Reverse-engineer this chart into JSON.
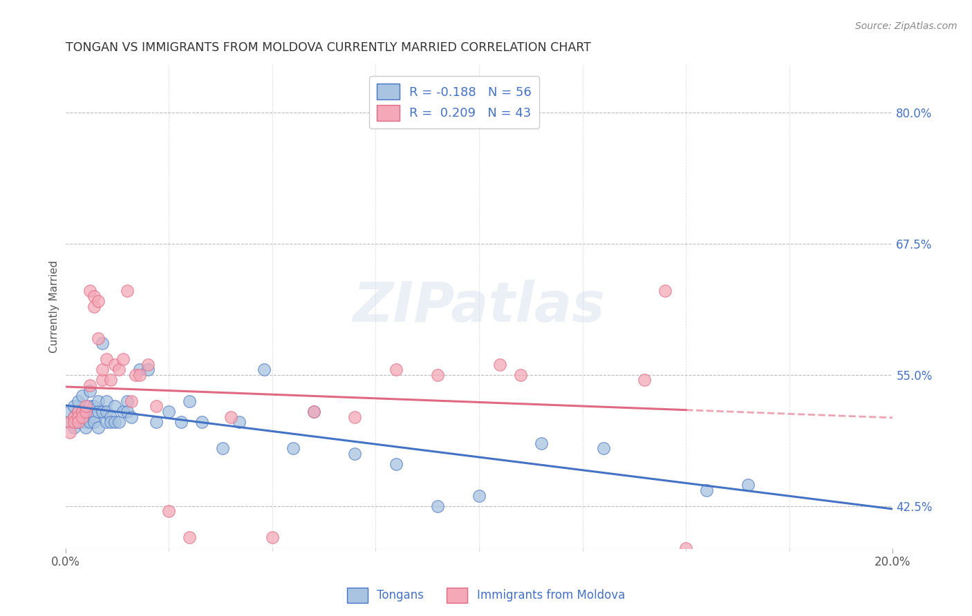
{
  "title": "TONGAN VS IMMIGRANTS FROM MOLDOVA CURRENTLY MARRIED CORRELATION CHART",
  "source": "Source: ZipAtlas.com",
  "ylabel": "Currently Married",
  "ytick_labels": [
    "42.5%",
    "55.0%",
    "67.5%",
    "80.0%"
  ],
  "ytick_values": [
    0.425,
    0.55,
    0.675,
    0.8
  ],
  "xlim": [
    0.0,
    0.2
  ],
  "ylim": [
    0.385,
    0.845
  ],
  "watermark": "ZIPatlas",
  "legend_blue_r": "R = -0.188",
  "legend_blue_n": "N = 56",
  "legend_pink_r": "R =  0.209",
  "legend_pink_n": "N = 43",
  "color_blue": "#a8c4e0",
  "color_pink": "#f4a8b8",
  "line_blue": "#4472c4",
  "line_pink": "#e06880",
  "background": "#ffffff",
  "tongan_x": [
    0.001,
    0.001,
    0.002,
    0.002,
    0.002,
    0.003,
    0.003,
    0.003,
    0.004,
    0.004,
    0.005,
    0.005,
    0.005,
    0.006,
    0.006,
    0.006,
    0.007,
    0.007,
    0.007,
    0.008,
    0.008,
    0.008,
    0.009,
    0.009,
    0.01,
    0.01,
    0.01,
    0.011,
    0.011,
    0.012,
    0.012,
    0.013,
    0.014,
    0.015,
    0.015,
    0.016,
    0.018,
    0.02,
    0.022,
    0.025,
    0.028,
    0.03,
    0.033,
    0.038,
    0.042,
    0.048,
    0.055,
    0.06,
    0.07,
    0.08,
    0.09,
    0.1,
    0.115,
    0.13,
    0.155,
    0.165
  ],
  "tongan_y": [
    0.515,
    0.505,
    0.52,
    0.51,
    0.5,
    0.525,
    0.515,
    0.505,
    0.53,
    0.515,
    0.51,
    0.505,
    0.5,
    0.535,
    0.52,
    0.505,
    0.52,
    0.51,
    0.505,
    0.525,
    0.515,
    0.5,
    0.58,
    0.515,
    0.525,
    0.515,
    0.505,
    0.51,
    0.505,
    0.52,
    0.505,
    0.505,
    0.515,
    0.525,
    0.515,
    0.51,
    0.555,
    0.555,
    0.505,
    0.515,
    0.505,
    0.525,
    0.505,
    0.48,
    0.505,
    0.555,
    0.48,
    0.515,
    0.475,
    0.465,
    0.425,
    0.435,
    0.485,
    0.48,
    0.44,
    0.445
  ],
  "moldova_x": [
    0.001,
    0.001,
    0.002,
    0.002,
    0.003,
    0.003,
    0.003,
    0.004,
    0.004,
    0.005,
    0.005,
    0.006,
    0.006,
    0.007,
    0.007,
    0.008,
    0.008,
    0.009,
    0.009,
    0.01,
    0.011,
    0.012,
    0.013,
    0.014,
    0.015,
    0.016,
    0.017,
    0.018,
    0.02,
    0.022,
    0.025,
    0.03,
    0.04,
    0.05,
    0.06,
    0.07,
    0.08,
    0.09,
    0.105,
    0.11,
    0.14,
    0.145,
    0.15
  ],
  "moldova_y": [
    0.505,
    0.495,
    0.51,
    0.505,
    0.515,
    0.51,
    0.505,
    0.515,
    0.51,
    0.515,
    0.52,
    0.54,
    0.63,
    0.625,
    0.615,
    0.585,
    0.62,
    0.545,
    0.555,
    0.565,
    0.545,
    0.56,
    0.555,
    0.565,
    0.63,
    0.525,
    0.55,
    0.55,
    0.56,
    0.52,
    0.42,
    0.395,
    0.51,
    0.395,
    0.515,
    0.51,
    0.555,
    0.55,
    0.56,
    0.55,
    0.545,
    0.63,
    0.385
  ]
}
